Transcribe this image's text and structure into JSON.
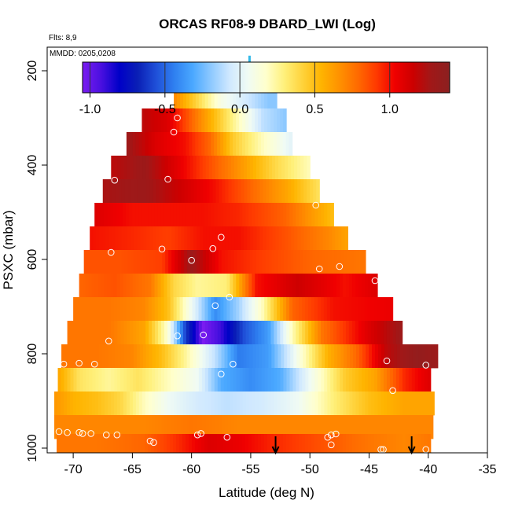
{
  "chart_data": {
    "type": "heatmap",
    "title": "ORCAS RF08-9 DBARD_LWI (Log)",
    "flights_label": "Flts: 8,9",
    "dates_label": "MMDD: 0205,0208",
    "xlabel": "Latitude (deg N)",
    "ylabel": "PSXC (mbar)",
    "xlim": [
      -72.2,
      -35
    ],
    "ylim": [
      1010,
      150
    ],
    "x_ticks": [
      -70,
      -65,
      -60,
      -55,
      -50,
      -45,
      -40,
      -35
    ],
    "y_ticks": [
      200,
      400,
      600,
      800,
      1000
    ],
    "colorbar": {
      "range": [
        -1.05,
        1.4
      ],
      "ticks": [
        -1.0,
        -0.5,
        0.0,
        0.5,
        1.0
      ],
      "tick_labels": [
        "-1.0",
        "-0.5",
        "0.0",
        "0.5",
        "1.0"
      ],
      "colors": [
        "#7a1cf0",
        "#4a10e0",
        "#0000c8",
        "#0a1fb5",
        "#1f4fd8",
        "#2f80f0",
        "#4aa8ff",
        "#8ec9ff",
        "#cfe8ff",
        "#f0fbf4",
        "#ffffcc",
        "#fff07a",
        "#ffd23a",
        "#ffb400",
        "#ff9100",
        "#ff6a00",
        "#ff3a00",
        "#f00000",
        "#cc0000",
        "#a01818",
        "#8b2020"
      ]
    },
    "rows": [
      {
        "p": 255,
        "start": -61.5,
        "end": -52.8,
        "values": [
          {
            "x": -61.5,
            "v": 0.7
          },
          {
            "x": -59.5,
            "v": 0.4
          },
          {
            "x": -57.5,
            "v": 0.1
          },
          {
            "x": -55.5,
            "v": -0.05
          },
          {
            "x": -53.5,
            "v": -0.2
          }
        ]
      },
      {
        "p": 305,
        "start": -64.2,
        "end": -52.0,
        "values": [
          {
            "x": -64.2,
            "v": 1.2
          },
          {
            "x": -62.0,
            "v": 1.1
          },
          {
            "x": -60.0,
            "v": 0.8
          },
          {
            "x": -58.0,
            "v": 0.5
          },
          {
            "x": -56.0,
            "v": 0.2
          },
          {
            "x": -54.0,
            "v": -0.1
          },
          {
            "x": -52.0,
            "v": -0.2
          }
        ]
      },
      {
        "p": 355,
        "start": -65.5,
        "end": -51.5,
        "values": [
          {
            "x": -65.5,
            "v": 1.3
          },
          {
            "x": -63.0,
            "v": 1.1
          },
          {
            "x": -60.5,
            "v": 1.0
          },
          {
            "x": -58.5,
            "v": 0.8
          },
          {
            "x": -56.5,
            "v": 0.45
          },
          {
            "x": -54.0,
            "v": 0.2
          },
          {
            "x": -51.5,
            "v": 0.0
          }
        ]
      },
      {
        "p": 405,
        "start": -66.8,
        "end": -50.0,
        "values": [
          {
            "x": -66.8,
            "v": 1.2
          },
          {
            "x": -64.0,
            "v": 1.3
          },
          {
            "x": -61.5,
            "v": 1.1
          },
          {
            "x": -59.0,
            "v": 0.9
          },
          {
            "x": -56.5,
            "v": 0.7
          },
          {
            "x": -53.0,
            "v": 0.4
          },
          {
            "x": -50.0,
            "v": 0.2
          }
        ]
      },
      {
        "p": 455,
        "start": -67.5,
        "end": -49.2,
        "values": [
          {
            "x": -67.5,
            "v": 1.25
          },
          {
            "x": -64.0,
            "v": 1.3
          },
          {
            "x": -61.0,
            "v": 1.15
          },
          {
            "x": -58.0,
            "v": 1.0
          },
          {
            "x": -55.0,
            "v": 0.8
          },
          {
            "x": -52.0,
            "v": 0.6
          },
          {
            "x": -49.2,
            "v": 0.35
          }
        ]
      },
      {
        "p": 505,
        "start": -68.2,
        "end": -48.0,
        "values": [
          {
            "x": -68.2,
            "v": 1.1
          },
          {
            "x": -65.0,
            "v": 1.0
          },
          {
            "x": -62.0,
            "v": 1.0
          },
          {
            "x": -59.0,
            "v": 1.0
          },
          {
            "x": -56.0,
            "v": 0.95
          },
          {
            "x": -52.0,
            "v": 0.8
          },
          {
            "x": -48.0,
            "v": 0.5
          }
        ]
      },
      {
        "p": 555,
        "start": -68.6,
        "end": -46.8,
        "values": [
          {
            "x": -68.6,
            "v": 1.0
          },
          {
            "x": -65.0,
            "v": 0.95
          },
          {
            "x": -62.0,
            "v": 0.9
          },
          {
            "x": -59.0,
            "v": 1.0
          },
          {
            "x": -56.0,
            "v": 1.0
          },
          {
            "x": -52.0,
            "v": 0.85
          },
          {
            "x": -48.5,
            "v": 0.7
          },
          {
            "x": -46.8,
            "v": 0.6
          }
        ]
      },
      {
        "p": 605,
        "start": -69.1,
        "end": -45.3,
        "values": [
          {
            "x": -69.1,
            "v": 0.85
          },
          {
            "x": -66.0,
            "v": 0.85
          },
          {
            "x": -62.5,
            "v": 0.9
          },
          {
            "x": -60.0,
            "v": 1.3
          },
          {
            "x": -57.5,
            "v": 1.0
          },
          {
            "x": -54.0,
            "v": 0.9
          },
          {
            "x": -50.0,
            "v": 0.8
          },
          {
            "x": -45.3,
            "v": 0.75
          }
        ]
      },
      {
        "p": 655,
        "start": -69.5,
        "end": -44.3,
        "values": [
          {
            "x": -69.5,
            "v": 0.8
          },
          {
            "x": -66.5,
            "v": 0.85
          },
          {
            "x": -63.5,
            "v": 0.75
          },
          {
            "x": -61.5,
            "v": 0.4
          },
          {
            "x": -59.5,
            "v": 0.25
          },
          {
            "x": -57.0,
            "v": 0.3
          },
          {
            "x": -54.5,
            "v": 1.0
          },
          {
            "x": -51.0,
            "v": 1.15
          },
          {
            "x": -47.0,
            "v": 1.0
          },
          {
            "x": -44.3,
            "v": 1.1
          }
        ]
      },
      {
        "p": 705,
        "start": -70.0,
        "end": -43.0,
        "values": [
          {
            "x": -70.0,
            "v": 0.75
          },
          {
            "x": -67.0,
            "v": 0.75
          },
          {
            "x": -64.0,
            "v": 0.7
          },
          {
            "x": -62.0,
            "v": 0.5
          },
          {
            "x": -60.0,
            "v": 0.05
          },
          {
            "x": -58.0,
            "v": -0.4
          },
          {
            "x": -56.0,
            "v": -0.15
          },
          {
            "x": -54.0,
            "v": 0.2
          },
          {
            "x": -51.5,
            "v": 0.8
          },
          {
            "x": -48.0,
            "v": 1.0
          },
          {
            "x": -43.0,
            "v": 1.05
          }
        ]
      },
      {
        "p": 755,
        "start": -70.5,
        "end": -42.2,
        "values": [
          {
            "x": -70.5,
            "v": 0.75
          },
          {
            "x": -67.0,
            "v": 0.75
          },
          {
            "x": -64.0,
            "v": 0.6
          },
          {
            "x": -62.0,
            "v": 0.15
          },
          {
            "x": -60.5,
            "v": -0.6
          },
          {
            "x": -59.0,
            "v": -1.05
          },
          {
            "x": -57.5,
            "v": -0.9
          },
          {
            "x": -55.5,
            "v": -0.55
          },
          {
            "x": -53.5,
            "v": -0.35
          },
          {
            "x": -51.5,
            "v": 0.2
          },
          {
            "x": -49.0,
            "v": 0.75
          },
          {
            "x": -45.0,
            "v": 1.1
          },
          {
            "x": -42.2,
            "v": 1.3
          }
        ]
      },
      {
        "p": 805,
        "start": -71.0,
        "end": -39.2,
        "values": [
          {
            "x": -71.0,
            "v": 0.75
          },
          {
            "x": -68.0,
            "v": 0.75
          },
          {
            "x": -65.0,
            "v": 0.7
          },
          {
            "x": -62.5,
            "v": 0.5
          },
          {
            "x": -60.5,
            "v": 0.25
          },
          {
            "x": -58.0,
            "v": -0.1
          },
          {
            "x": -56.0,
            "v": -0.45
          },
          {
            "x": -53.5,
            "v": -0.35
          },
          {
            "x": -51.0,
            "v": 0.1
          },
          {
            "x": -48.5,
            "v": 0.55
          },
          {
            "x": -46.0,
            "v": 0.8
          },
          {
            "x": -43.5,
            "v": 1.2
          },
          {
            "x": -41.0,
            "v": 1.35
          },
          {
            "x": -39.2,
            "v": 1.3
          }
        ]
      },
      {
        "p": 855,
        "start": -71.3,
        "end": -39.8,
        "values": [
          {
            "x": -71.3,
            "v": 0.6
          },
          {
            "x": -69.5,
            "v": 0.35
          },
          {
            "x": -67.0,
            "v": 0.25
          },
          {
            "x": -64.5,
            "v": 0.35
          },
          {
            "x": -62.0,
            "v": 0.2
          },
          {
            "x": -59.5,
            "v": 0.05
          },
          {
            "x": -57.5,
            "v": -0.3
          },
          {
            "x": -55.0,
            "v": -0.4
          },
          {
            "x": -52.5,
            "v": -0.3
          },
          {
            "x": -50.0,
            "v": 0.05
          },
          {
            "x": -47.0,
            "v": 0.45
          },
          {
            "x": -44.5,
            "v": 0.6
          },
          {
            "x": -42.0,
            "v": 0.95
          },
          {
            "x": -39.8,
            "v": 1.1
          }
        ]
      },
      {
        "p": 905,
        "start": -71.6,
        "end": -39.5,
        "values": [
          {
            "x": -71.6,
            "v": 0.65
          },
          {
            "x": -70.0,
            "v": 0.55
          },
          {
            "x": -68.0,
            "v": 0.5
          },
          {
            "x": -66.0,
            "v": 0.4
          },
          {
            "x": -64.0,
            "v": 0.2
          },
          {
            "x": -62.0,
            "v": 0.05
          },
          {
            "x": -59.5,
            "v": -0.05
          },
          {
            "x": -57.0,
            "v": -0.1
          },
          {
            "x": -54.0,
            "v": -0.05
          },
          {
            "x": -51.0,
            "v": 0.05
          },
          {
            "x": -48.0,
            "v": 0.3
          },
          {
            "x": -45.0,
            "v": 0.5
          },
          {
            "x": -42.0,
            "v": 0.6
          },
          {
            "x": -39.5,
            "v": 0.6
          }
        ]
      },
      {
        "p": 955,
        "start": -71.6,
        "end": -39.6,
        "values": [
          {
            "x": -71.6,
            "v": 0.7
          },
          {
            "x": -68.0,
            "v": 0.7
          },
          {
            "x": -64.0,
            "v": 0.7
          },
          {
            "x": -60.0,
            "v": 0.75
          },
          {
            "x": -56.0,
            "v": 0.7
          },
          {
            "x": -52.0,
            "v": 0.7
          },
          {
            "x": -48.0,
            "v": 0.7
          },
          {
            "x": -44.0,
            "v": 0.7
          },
          {
            "x": -39.6,
            "v": 0.7
          }
        ]
      },
      {
        "p": 995,
        "start": -71.4,
        "end": -39.8,
        "values": [
          {
            "x": -71.4,
            "v": 0.75
          },
          {
            "x": -68.0,
            "v": 0.75
          },
          {
            "x": -64.0,
            "v": 0.8
          },
          {
            "x": -61.0,
            "v": 0.95
          },
          {
            "x": -58.5,
            "v": 1.1
          },
          {
            "x": -56.0,
            "v": 1.05
          },
          {
            "x": -53.0,
            "v": 0.95
          },
          {
            "x": -49.0,
            "v": 0.85
          },
          {
            "x": -45.0,
            "v": 0.75
          },
          {
            "x": -42.0,
            "v": 0.7
          },
          {
            "x": -39.8,
            "v": 0.75
          }
        ]
      }
    ],
    "points": [
      [
        -61.2,
        300
      ],
      [
        -61.5,
        330
      ],
      [
        -66.5,
        432
      ],
      [
        -62.0,
        430
      ],
      [
        -49.5,
        485
      ],
      [
        -57.5,
        553
      ],
      [
        -66.8,
        585
      ],
      [
        -62.5,
        578
      ],
      [
        -58.2,
        577
      ],
      [
        -60.0,
        602
      ],
      [
        -49.2,
        620
      ],
      [
        -47.5,
        615
      ],
      [
        -44.5,
        645
      ],
      [
        -56.8,
        680
      ],
      [
        -58.0,
        698
      ],
      [
        -61.2,
        762
      ],
      [
        -59.0,
        760
      ],
      [
        -67.0,
        773
      ],
      [
        -70.8,
        822
      ],
      [
        -69.5,
        820
      ],
      [
        -68.2,
        822
      ],
      [
        -56.5,
        822
      ],
      [
        -57.5,
        843
      ],
      [
        -43.5,
        815
      ],
      [
        -40.2,
        824
      ],
      [
        -43.0,
        878
      ],
      [
        -71.2,
        965
      ],
      [
        -70.5,
        967
      ],
      [
        -69.5,
        967
      ],
      [
        -69.2,
        969
      ],
      [
        -68.5,
        969
      ],
      [
        -67.2,
        972
      ],
      [
        -66.3,
        972
      ],
      [
        -63.5,
        985
      ],
      [
        -63.2,
        988
      ],
      [
        -59.5,
        972
      ],
      [
        -59.2,
        969
      ],
      [
        -57.0,
        977
      ],
      [
        -48.5,
        977
      ],
      [
        -48.2,
        972
      ],
      [
        -48.2,
        993
      ],
      [
        -47.8,
        970
      ],
      [
        -44.0,
        1003
      ],
      [
        -43.8,
        1003
      ],
      [
        -40.2,
        1003
      ]
    ],
    "arrows": [
      {
        "x": -52.9
      },
      {
        "x": -41.4
      }
    ],
    "marker": {
      "x": -55.1,
      "p": [
        168,
        208
      ]
    }
  }
}
